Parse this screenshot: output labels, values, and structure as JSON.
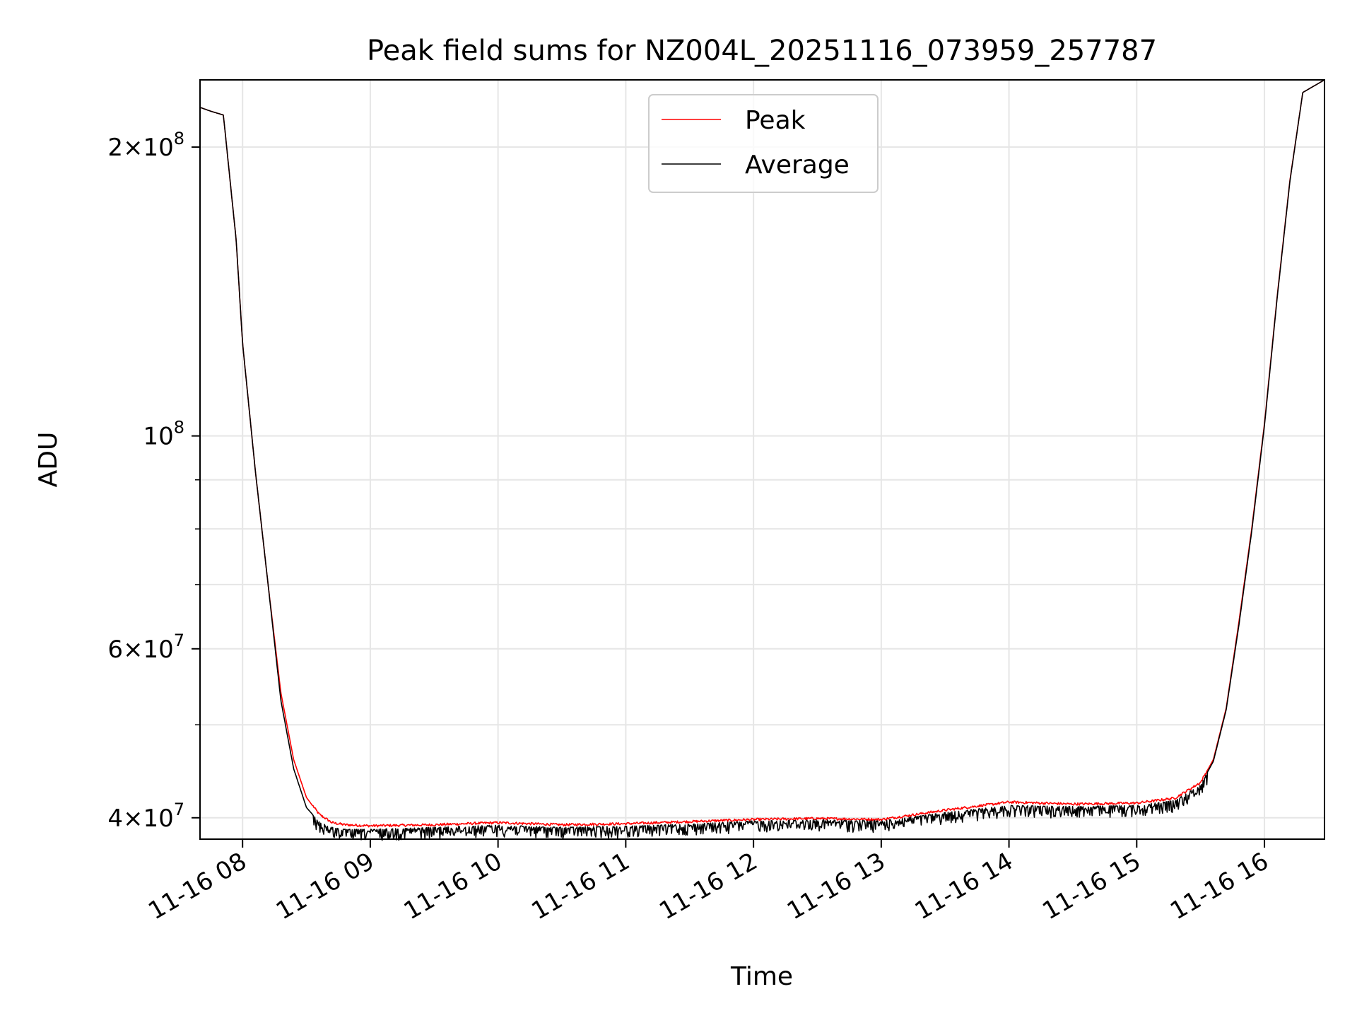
{
  "chart_data": {
    "type": "line",
    "title": "Peak field sums for NZ004L_20251116_073959_257787",
    "xlabel": "Time",
    "ylabel": "ADU",
    "x_unit": "hours since 2025-11-16 00:00",
    "xlim": [
      7.667,
      16.47
    ],
    "ylim": [
      38000000,
      235000000
    ],
    "yscale": "log",
    "grid": true,
    "legend_position": "top-center",
    "x_ticks": [
      {
        "value": 8,
        "label": "11-16 08"
      },
      {
        "value": 9,
        "label": "11-16 09"
      },
      {
        "value": 10,
        "label": "11-16 10"
      },
      {
        "value": 11,
        "label": "11-16 11"
      },
      {
        "value": 12,
        "label": "11-16 12"
      },
      {
        "value": 13,
        "label": "11-16 13"
      },
      {
        "value": 14,
        "label": "11-16 14"
      },
      {
        "value": 15,
        "label": "11-16 15"
      },
      {
        "value": 16,
        "label": "11-16 16"
      }
    ],
    "y_major_ticks": [
      {
        "value": 40000000,
        "mantissa": "4",
        "times": "×",
        "base": "10",
        "exp": "7"
      },
      {
        "value": 60000000,
        "mantissa": "6",
        "times": "×",
        "base": "10",
        "exp": "7"
      },
      {
        "value": 100000000,
        "mantissa": "",
        "times": "",
        "base": "10",
        "exp": "8"
      },
      {
        "value": 200000000,
        "mantissa": "2",
        "times": "×",
        "base": "10",
        "exp": "8"
      }
    ],
    "y_minor_ticks": [
      50000000,
      70000000,
      80000000,
      90000000
    ],
    "series": [
      {
        "name": "Peak",
        "color": "#ff0000",
        "noise": "up",
        "x": [
          7.667,
          7.75,
          7.85,
          7.95,
          8.0,
          8.1,
          8.2,
          8.3,
          8.4,
          8.5,
          8.6,
          8.7,
          8.8,
          9.0,
          9.5,
          10.0,
          10.5,
          11.0,
          11.5,
          12.0,
          12.5,
          13.0,
          13.5,
          14.0,
          14.5,
          15.0,
          15.3,
          15.5,
          15.6,
          15.7,
          15.8,
          15.9,
          16.0,
          16.1,
          16.2,
          16.3,
          16.47
        ],
        "y": [
          220000000,
          218000000,
          216000000,
          160000000,
          125000000,
          92000000,
          70000000,
          54000000,
          46000000,
          42000000,
          40300000,
          39500000,
          39300000,
          39200000,
          39300000,
          39500000,
          39300000,
          39400000,
          39600000,
          39800000,
          39900000,
          39800000,
          40700000,
          41500000,
          41300000,
          41400000,
          41900000,
          43500000,
          46000000,
          52000000,
          64000000,
          80000000,
          103000000,
          140000000,
          185000000,
          228000000,
          235000000
        ]
      },
      {
        "name": "Average",
        "color": "#000000",
        "noise": "down",
        "x": [
          7.667,
          7.75,
          7.85,
          7.95,
          8.0,
          8.1,
          8.2,
          8.3,
          8.4,
          8.5,
          8.6,
          8.7,
          8.8,
          9.0,
          9.5,
          10.0,
          10.5,
          11.0,
          11.5,
          12.0,
          12.5,
          13.0,
          13.5,
          14.0,
          14.5,
          15.0,
          15.3,
          15.5,
          15.6,
          15.7,
          15.8,
          15.9,
          16.0,
          16.1,
          16.2,
          16.3,
          16.47
        ],
        "y": [
          220000000,
          218000000,
          216000000,
          160000000,
          125000000,
          92000000,
          70000000,
          53000000,
          45000000,
          41000000,
          39600000,
          39100000,
          38900000,
          38900000,
          39100000,
          39300000,
          39100000,
          39200000,
          39400000,
          39700000,
          39800000,
          39700000,
          40500000,
          41200000,
          41100000,
          41200000,
          41700000,
          43300000,
          45800000,
          51800000,
          63500000,
          79500000,
          102500000,
          139500000,
          184500000,
          228000000,
          235000000
        ]
      }
    ]
  }
}
